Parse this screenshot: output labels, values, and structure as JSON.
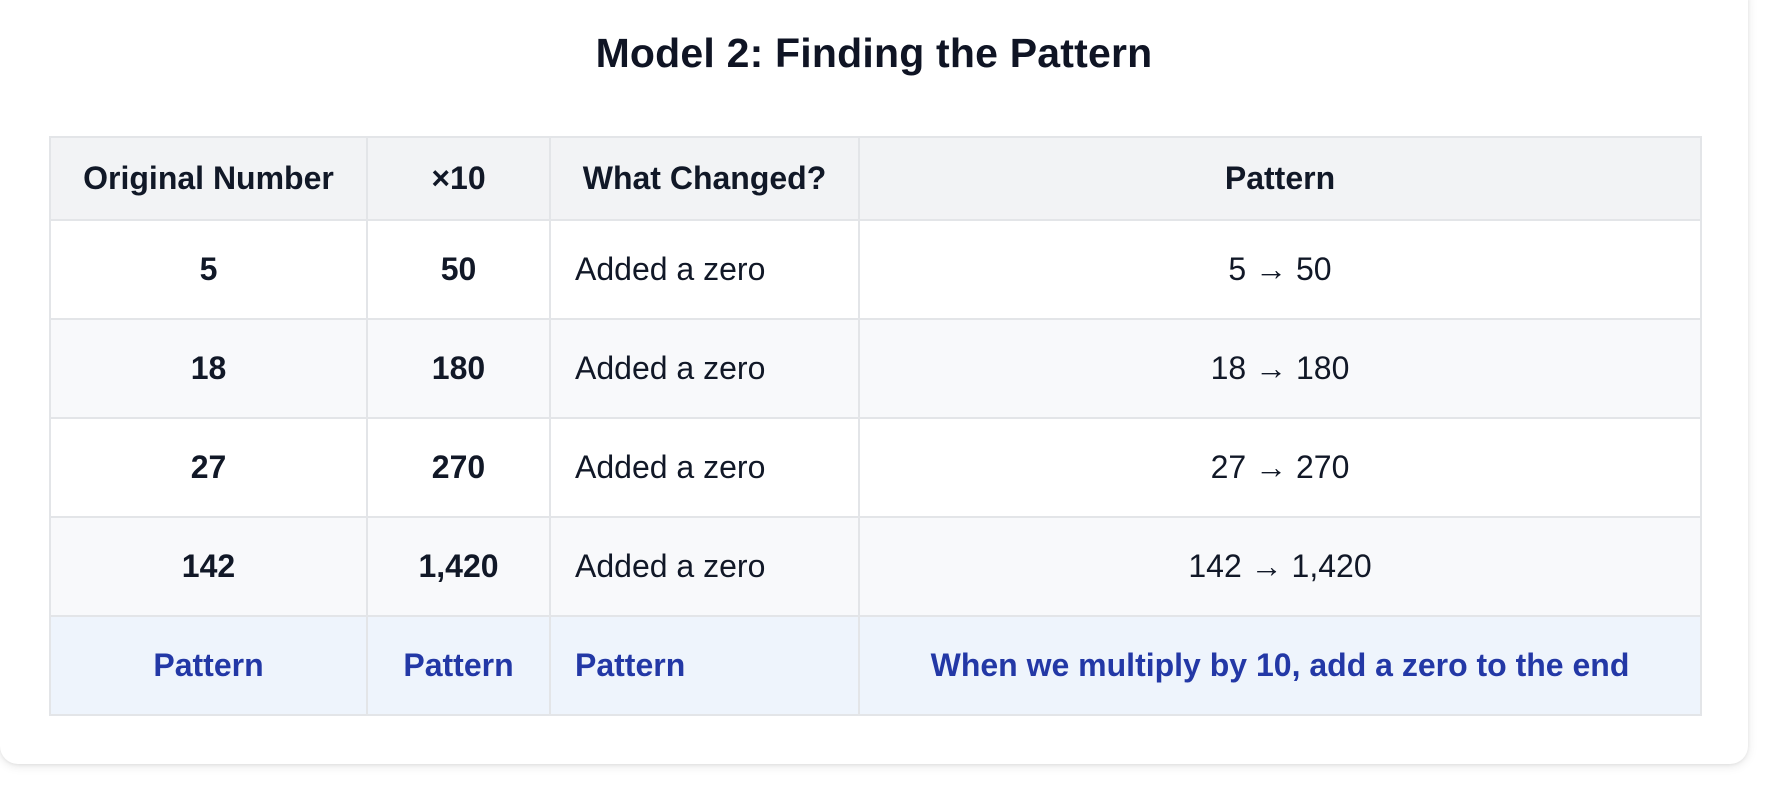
{
  "title": "Model 2: Finding the Pattern",
  "table": {
    "headers": [
      "Original Number",
      "×10",
      "What Changed?",
      "Pattern"
    ],
    "rows": [
      {
        "original": "5",
        "times_ten": "50",
        "change": "Added a zero",
        "pattern": "5 → 50"
      },
      {
        "original": "18",
        "times_ten": "180",
        "change": "Added a zero",
        "pattern": "18 → 180"
      },
      {
        "original": "27",
        "times_ten": "270",
        "change": "Added a zero",
        "pattern": "27 → 270"
      },
      {
        "original": "142",
        "times_ten": "1,420",
        "change": "Added a zero",
        "pattern": "142 → 1,420"
      }
    ],
    "summary": {
      "col1": "Pattern",
      "col2": "Pattern",
      "col3": "Pattern",
      "col4": "When we multiply by 10, add a zero to the end"
    }
  },
  "colors": {
    "summary_text": "#2338a6",
    "summary_bg": "#eef4fc",
    "header_bg": "#f2f3f5"
  }
}
